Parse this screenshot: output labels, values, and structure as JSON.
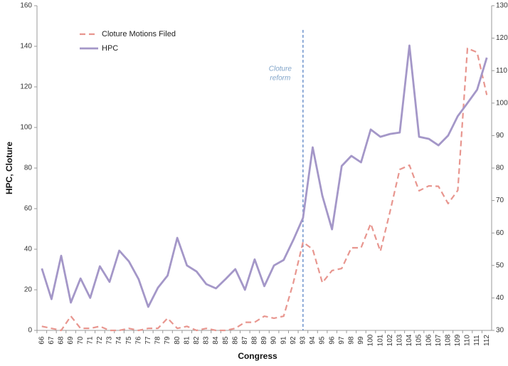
{
  "chart_data": {
    "type": "line",
    "xlabel": "Congress",
    "ylabel": "HPC, Cloture",
    "categories": [
      "66",
      "67",
      "68",
      "69",
      "70",
      "71",
      "72",
      "73",
      "74",
      "75",
      "76",
      "77",
      "78",
      "79",
      "80",
      "81",
      "82",
      "83",
      "84",
      "85",
      "86",
      "87",
      "88",
      "89",
      "90",
      "91",
      "92",
      "93",
      "94",
      "95",
      "96",
      "97",
      "98",
      "99",
      "100",
      "101",
      "102",
      "103",
      "104",
      "105",
      "106",
      "107",
      "108",
      "109",
      "110",
      "111",
      "112"
    ],
    "series": [
      {
        "name": "Cloture Motions Filed",
        "color": "#e8968f",
        "dashed": true,
        "values": [
          2,
          1,
          0,
          7,
          1,
          1,
          2,
          0,
          0,
          1,
          0,
          1,
          1,
          6,
          1,
          2,
          0,
          1,
          0,
          0,
          1,
          4,
          4,
          7,
          6,
          7,
          23.5,
          43.5,
          40,
          23.5,
          29.5,
          30.5,
          40.7,
          40.7,
          52.6,
          39,
          58.6,
          79.3,
          81.4,
          68.8,
          71.2,
          71,
          62.5,
          69,
          139,
          137,
          116
        ]
      },
      {
        "name": "HPC",
        "color": "#a497c8",
        "dashed": false,
        "values": [
          30.5,
          15.4,
          36.8,
          13.7,
          25.6,
          16,
          31.6,
          23.9,
          39.3,
          34,
          25.3,
          11.6,
          21,
          27,
          45.6,
          32,
          29,
          22.8,
          20.7,
          25.3,
          30.2,
          20,
          35,
          21.8,
          32,
          34.7,
          44.6,
          55.4,
          90.2,
          66.3,
          49.8,
          81,
          86,
          82.8,
          99,
          95.4,
          96.8,
          97.5,
          140.4,
          95.4,
          94.4,
          91.2,
          96,
          105.6,
          112,
          118.6,
          134.4
        ]
      }
    ],
    "ylim": [
      0,
      160
    ],
    "yticks": [
      0,
      20,
      40,
      60,
      80,
      100,
      120,
      140,
      160
    ],
    "y2lim": [
      30,
      130
    ],
    "y2ticks": [
      30,
      40,
      50,
      60,
      70,
      80,
      90,
      100,
      110,
      120,
      130
    ],
    "legend": "upper-left",
    "annotation": {
      "lines": [
        "Cloture",
        "reform"
      ],
      "at": "93",
      "color": "#4a78c0"
    }
  }
}
